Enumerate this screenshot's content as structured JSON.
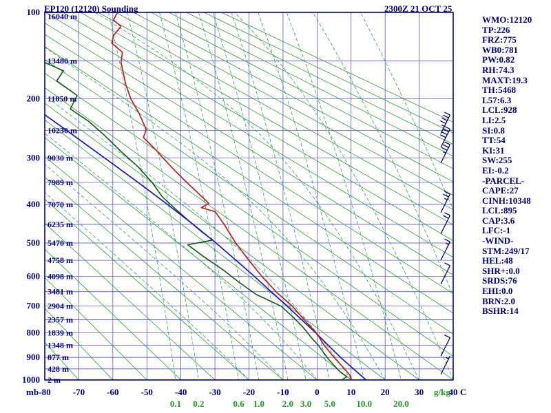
{
  "header": {
    "title": "EP120 (12120) Sounding",
    "datetime": "2300Z 21 OCT 25"
  },
  "panel": {
    "lines": [
      "WMO:12120",
      "TP:226",
      "FRZ:775",
      "WB0:781",
      "PW:0.82",
      "RH:74.3",
      "MAXT:19.3",
      "TH:5468",
      "L57:6.3",
      "LCL:928",
      "LI:2.5",
      "SI:0.8",
      "TT:54",
      "KI:31",
      "SW:255",
      "EI:-0.2",
      "-PARCEL-",
      "CAPE:27",
      "CINH:10348",
      "LCL:895",
      "CAP:3.6",
      "LFC:-1",
      "-WIND-",
      "STM:249/17",
      "HEL:48",
      "SHR+:0.0",
      "SRDS:76",
      "EHI:0.0",
      "BRN:2.0",
      "BSHR:14"
    ]
  },
  "colors": {
    "navy": "#000080",
    "grid": "#2828c8",
    "adiabat": "#2aa12a",
    "dash": "#2f9e62",
    "mix_label": "#18a018",
    "temperature": "#c51a1a",
    "dewpoint": "#0a5c0a",
    "parcel": "#1414cc"
  },
  "chart_data": {
    "type": "line",
    "diagram": "stuve-sounding",
    "title": "EP120 (12120) Sounding",
    "xlabel": "C",
    "ylabel": "mb",
    "x_axis": {
      "unit": "C",
      "min": -80,
      "max": 40,
      "step": 10
    },
    "y_axis": {
      "unit": "mb",
      "tick_labels": [
        100,
        200,
        300,
        400,
        500,
        600,
        700,
        800,
        900,
        1000
      ]
    },
    "isobars_hpa": {
      "min": 100,
      "max": 1000,
      "step": 50
    },
    "isotherms_c": {
      "min": -80,
      "max": 40,
      "step": 10
    },
    "dry_adiabats_c": {
      "min": -80,
      "max": 200,
      "step": 10
    },
    "moist_adiabats_c": [
      -20,
      -10,
      0,
      10,
      20,
      30,
      40,
      50,
      60
    ],
    "mixing_ratio_gkg": [
      0.1,
      0.2,
      0.6,
      1.0,
      2.0,
      3.0,
      5.0,
      10.0,
      20.0
    ],
    "mixing_unit": "g/kg",
    "height_labels": [
      {
        "p": 100,
        "label": "16040 m"
      },
      {
        "p": 150,
        "label": "13480 m"
      },
      {
        "p": 200,
        "label": "11850 m"
      },
      {
        "p": 250,
        "label": "10230 m"
      },
      {
        "p": 300,
        "label": "9030 m"
      },
      {
        "p": 350,
        "label": "7989 m"
      },
      {
        "p": 400,
        "label": "7070 m"
      },
      {
        "p": 450,
        "label": "6235 m"
      },
      {
        "p": 500,
        "label": "5470 m"
      },
      {
        "p": 550,
        "label": "4758 m"
      },
      {
        "p": 600,
        "label": "4098 m"
      },
      {
        "p": 650,
        "label": "3481 m"
      },
      {
        "p": 700,
        "label": "2904 m"
      },
      {
        "p": 750,
        "label": "2357 m"
      },
      {
        "p": 800,
        "label": "1839 m"
      },
      {
        "p": 850,
        "label": "1348 m"
      },
      {
        "p": 900,
        "label": "877 m"
      },
      {
        "p": 950,
        "label": "428 m"
      },
      {
        "p": 1000,
        "label": "2 m"
      }
    ],
    "series": {
      "temperature": {
        "name": "Temperature",
        "points": [
          [
            100,
            -58.7
          ],
          [
            107,
            -59.8
          ],
          [
            113,
            -57.6
          ],
          [
            122,
            -59.8
          ],
          [
            130,
            -60.3
          ],
          [
            140,
            -57.2
          ],
          [
            152,
            -57.6
          ],
          [
            165,
            -56.9
          ],
          [
            180,
            -56.2
          ],
          [
            200,
            -54.7
          ],
          [
            222,
            -52.3
          ],
          [
            248,
            -50.2
          ],
          [
            262,
            -51.0
          ],
          [
            285,
            -47.3
          ],
          [
            315,
            -43.2
          ],
          [
            345,
            -39.0
          ],
          [
            375,
            -34.8
          ],
          [
            398,
            -31.8
          ],
          [
            408,
            -34.0
          ],
          [
            418,
            -29.9
          ],
          [
            450,
            -27.3
          ],
          [
            500,
            -23.9
          ],
          [
            548,
            -20.2
          ],
          [
            600,
            -16.2
          ],
          [
            652,
            -11.9
          ],
          [
            700,
            -7.3
          ],
          [
            752,
            -3.6
          ],
          [
            800,
            -0.2
          ],
          [
            850,
            2.1
          ],
          [
            900,
            5.0
          ],
          [
            950,
            8.1
          ],
          [
            978,
            9.6
          ],
          [
            1000,
            10.2
          ]
        ]
      },
      "dewpoint": {
        "name": "Dewpoint",
        "points": [
          [
            152,
            -80
          ],
          [
            162,
            -74.5
          ],
          [
            175,
            -76.5
          ],
          [
            195,
            -70.5
          ],
          [
            215,
            -72.5
          ],
          [
            235,
            -67
          ],
          [
            258,
            -62.5
          ],
          [
            288,
            -57.5
          ],
          [
            318,
            -52.5
          ],
          [
            350,
            -48.5
          ],
          [
            382,
            -45.5
          ],
          [
            412,
            -41.5
          ],
          [
            442,
            -37.5
          ],
          [
            470,
            -33.8
          ],
          [
            492,
            -30.6
          ],
          [
            505,
            -38.0
          ],
          [
            538,
            -33.5
          ],
          [
            578,
            -27.8
          ],
          [
            620,
            -22.8
          ],
          [
            660,
            -17.8
          ],
          [
            700,
            -10.6
          ],
          [
            740,
            -7.0
          ],
          [
            780,
            -4.0
          ],
          [
            820,
            -1.6
          ],
          [
            850,
            0.4
          ],
          [
            880,
            1.9
          ],
          [
            910,
            3.5
          ],
          [
            940,
            5.3
          ],
          [
            965,
            6.9
          ],
          [
            985,
            8.8
          ],
          [
            1000,
            7.2
          ]
        ]
      },
      "parcel": {
        "name": "Parcel",
        "points": [
          [
            224,
            -80
          ],
          [
            250,
            -73.5
          ],
          [
            300,
            -62.4
          ],
          [
            350,
            -52.6
          ],
          [
            400,
            -44.0
          ],
          [
            450,
            -36.4
          ],
          [
            500,
            -29.7
          ],
          [
            550,
            -23.8
          ],
          [
            600,
            -18.4
          ],
          [
            650,
            -13.5
          ],
          [
            700,
            -8.8
          ],
          [
            750,
            -4.5
          ],
          [
            800,
            -0.4
          ],
          [
            850,
            3.3
          ],
          [
            900,
            6.9
          ],
          [
            950,
            10.7
          ],
          [
            1000,
            14.4
          ]
        ]
      }
    },
    "wind_barbs": [
      {
        "p": 255,
        "kt": 45
      },
      {
        "p": 280,
        "kt": 40
      },
      {
        "p": 310,
        "kt": 35
      },
      {
        "p": 420,
        "kt": 25
      },
      {
        "p": 475,
        "kt": 20
      },
      {
        "p": 550,
        "kt": 15
      },
      {
        "p": 625,
        "kt": 10
      },
      {
        "p": 895,
        "kt": 10
      },
      {
        "p": 975,
        "kt": 5
      }
    ]
  }
}
